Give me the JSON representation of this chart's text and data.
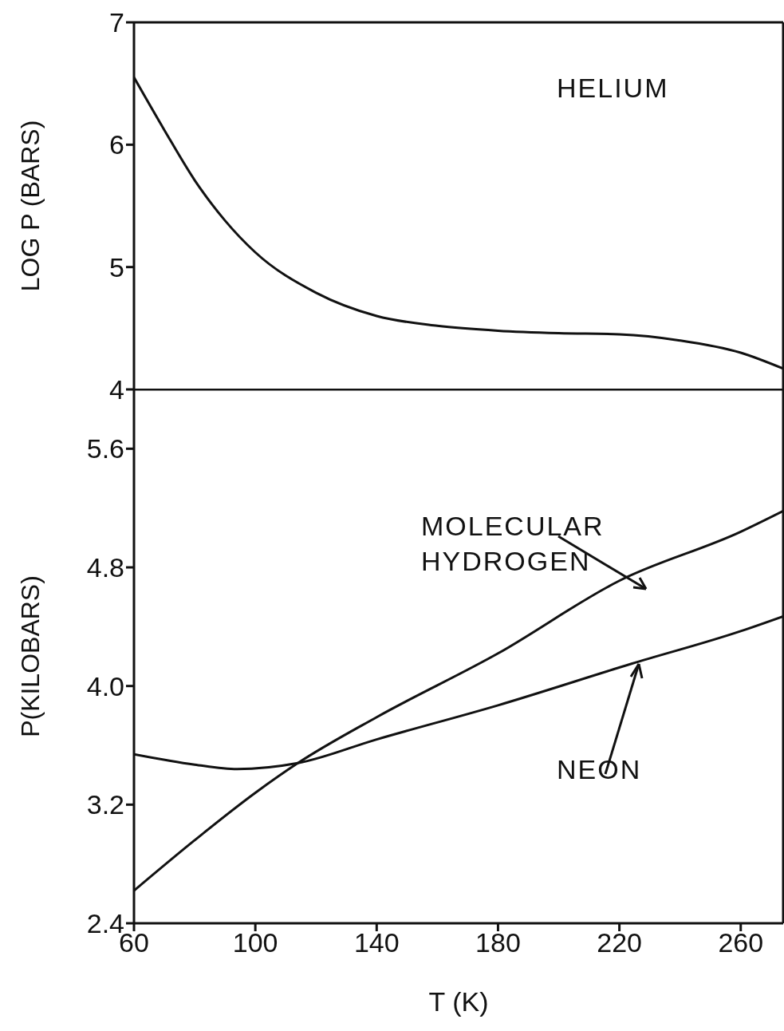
{
  "chart_data": [
    {
      "type": "line",
      "ylabel": "LOG P (BARS)",
      "x": [
        60,
        70,
        80,
        90,
        100,
        120,
        140,
        160,
        180,
        200,
        220,
        240,
        260,
        274
      ],
      "xlim": [
        60,
        274
      ],
      "ylim": [
        4,
        7
      ],
      "yticks": [
        4,
        5,
        6,
        7
      ],
      "tick_labels": "y",
      "marker": "none",
      "line_style": "solid",
      "legend": false,
      "grid": false,
      "series": [
        {
          "name": "HELIUM",
          "color": "#111111",
          "values": [
            6.55,
            6.12,
            5.71,
            5.38,
            5.12,
            4.79,
            4.6,
            4.52,
            4.48,
            4.46,
            4.45,
            4.4,
            4.3,
            4.17
          ]
        }
      ]
    },
    {
      "type": "line",
      "xlabel": "T (K)",
      "ylabel": "P(KILOBARS)",
      "xlim": [
        60,
        274
      ],
      "xticks": [
        60,
        100,
        140,
        180,
        220,
        260
      ],
      "ylim": [
        2.4,
        6.0
      ],
      "yticks": [
        2.4,
        3.2,
        {
          "value": 4,
          "label": "4.0"
        },
        4.8,
        5.6
      ],
      "marker": "none",
      "line_style": "solid",
      "legend": false,
      "grid": false,
      "series": [
        {
          "name": "MOLECULAR HYDROGEN",
          "color": "#111111",
          "x": [
            60,
            80,
            100,
            114,
            140,
            180,
            220,
            260,
            274
          ],
          "values": [
            2.62,
            2.96,
            3.28,
            3.48,
            3.79,
            4.22,
            4.71,
            5.04,
            5.18
          ]
        },
        {
          "name": "NEON",
          "color": "#111111",
          "x": [
            60,
            80,
            94,
            114,
            140,
            180,
            224,
            260,
            274
          ],
          "values": [
            3.54,
            3.47,
            3.44,
            3.48,
            3.64,
            3.87,
            4.15,
            4.37,
            4.47
          ]
        }
      ]
    }
  ]
}
